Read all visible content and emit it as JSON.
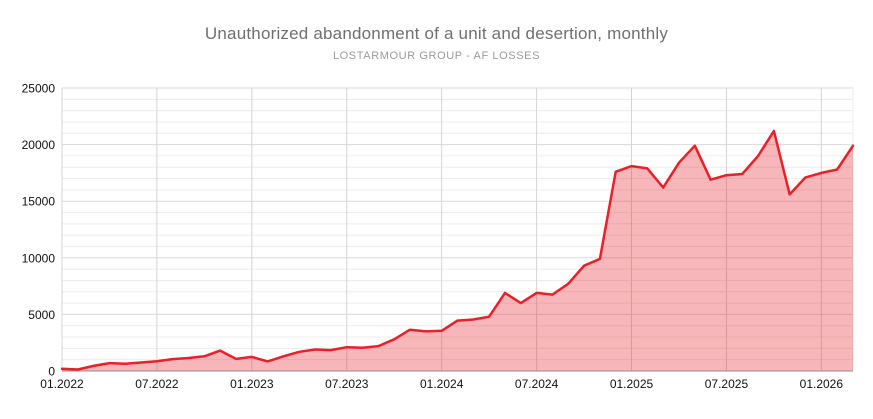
{
  "header": {
    "title": "Unauthorized abandonment of a unit and desertion, monthly",
    "subtitle": "LOSTARMOUR GROUP - AF LOSSES"
  },
  "colors": {
    "line": "#e8202a",
    "fill": "#e8202a",
    "fill_opacity": 0.33,
    "grid_minor": "#ececec",
    "grid_major": "#d9d9d9",
    "axis": "#8d8d8d",
    "tick_label": "#111111",
    "title": "#6f6f6f",
    "subtitle": "#9a9a9a"
  },
  "chart_data": {
    "type": "area",
    "title": "Unauthorized abandonment of a unit and desertion, monthly",
    "subtitle": "LOSTARMOUR GROUP - AF LOSSES",
    "xlabel": "",
    "ylabel": "",
    "grid": true,
    "legend": "none",
    "ylim": [
      0,
      25000
    ],
    "y_major_step": 5000,
    "y_minor_step": 1000,
    "y_tick_labels": [
      "0",
      "5000",
      "10000",
      "15000",
      "20000",
      "25000"
    ],
    "x_tick_every": 6,
    "x_tick_labels": [
      "01.2022",
      "07.2022",
      "01.2023",
      "07.2023",
      "01.2024",
      "07.2024",
      "01.2025",
      "07.2025",
      "01.2026"
    ],
    "x": [
      "01.2022",
      "02.2022",
      "03.2022",
      "04.2022",
      "05.2022",
      "06.2022",
      "07.2022",
      "08.2022",
      "09.2022",
      "10.2022",
      "11.2022",
      "12.2022",
      "01.2023",
      "02.2023",
      "03.2023",
      "04.2023",
      "05.2023",
      "06.2023",
      "07.2023",
      "08.2023",
      "09.2023",
      "10.2023",
      "11.2023",
      "12.2023",
      "01.2024",
      "02.2024",
      "03.2024",
      "04.2024",
      "05.2024",
      "06.2024",
      "07.2024",
      "08.2024",
      "09.2024",
      "10.2024",
      "11.2024",
      "12.2024",
      "01.2025",
      "02.2025",
      "03.2025",
      "04.2025",
      "05.2025",
      "06.2025",
      "07.2025",
      "08.2025",
      "09.2025",
      "10.2025",
      "11.2025",
      "12.2025",
      "01.2026",
      "02.2026",
      "03.2026"
    ],
    "values": [
      200,
      130,
      450,
      700,
      640,
      750,
      870,
      1050,
      1150,
      1300,
      1800,
      1070,
      1250,
      850,
      1300,
      1700,
      1900,
      1850,
      2100,
      2050,
      2200,
      2800,
      3650,
      3500,
      3550,
      4450,
      4550,
      4800,
      6900,
      6000,
      6900,
      6750,
      7700,
      9300,
      9900,
      17600,
      18100,
      17900,
      16200,
      18400,
      19900,
      16900,
      17300,
      17400,
      19000,
      21200,
      15600,
      17100,
      17500,
      17800,
      19900
    ]
  }
}
